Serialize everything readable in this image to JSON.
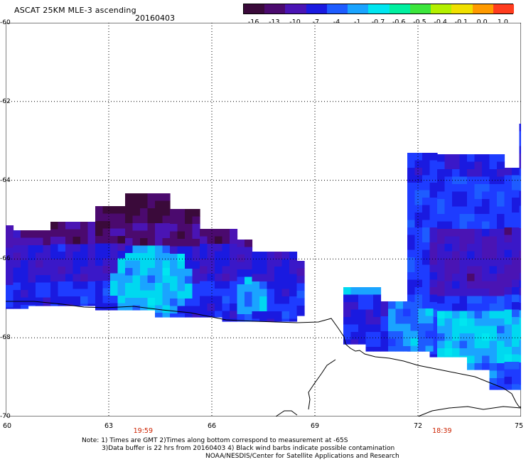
{
  "header": {
    "title": "ASCAT 25KM MLE-3 ascending",
    "date": "20160403"
  },
  "colorbar": {
    "tick_labels": [
      "-16",
      "-13",
      "-10",
      "-7",
      "-4",
      "-1",
      "-0.7",
      "-0.6",
      "-0.5",
      "-0.4",
      "-0.1",
      "0.0",
      "1.0"
    ],
    "colors": [
      "#3a0a3a",
      "#4b0a6e",
      "#4a14b4",
      "#1a1ae0",
      "#1e5cff",
      "#1aa4ff",
      "#00e6f0",
      "#00f0a0",
      "#3ce63c",
      "#b4f000",
      "#f0e000",
      "#ff9a00",
      "#ff3c1e"
    ]
  },
  "map": {
    "lon_ticks": [
      "60",
      "63",
      "66",
      "69",
      "72",
      "75"
    ],
    "lat_ticks": [
      "-60",
      "-62",
      "-64",
      "-66",
      "-68",
      "-70"
    ],
    "time_labels": [
      {
        "text": "19:59",
        "lon": 64
      },
      {
        "text": "18:39",
        "lon": 72.7
      }
    ]
  },
  "footer": {
    "line1": "Note: 1) Times are GMT 2)Times along bottom correspond to measurement at -65S",
    "line2": "3)Data buffer is 22 hrs from 20160403 4) Black wind barbs indicate possible contamination",
    "line3": "NOAA/NESDIS/Center for Satellite Applications and Research"
  }
}
